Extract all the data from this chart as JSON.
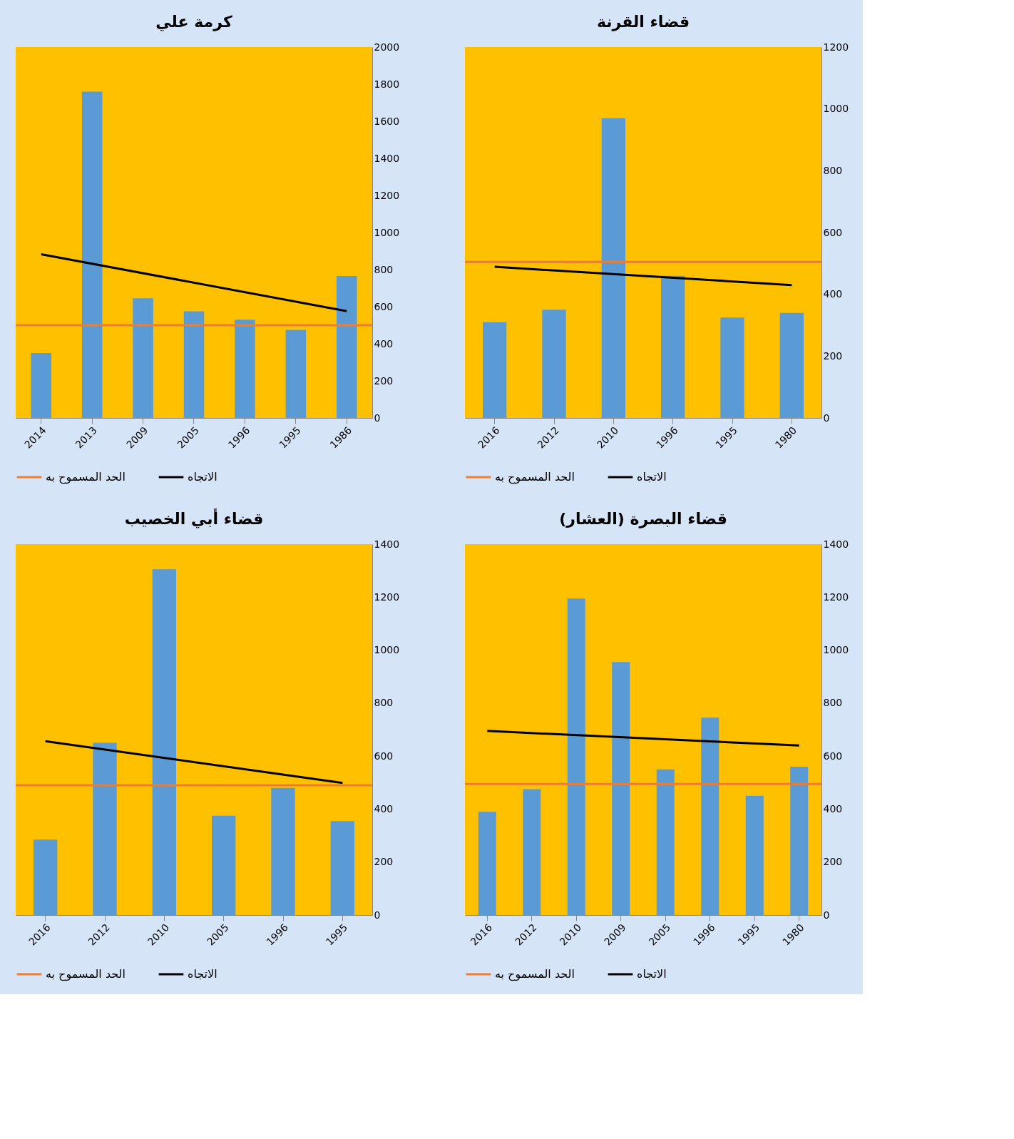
{
  "chart_data": [
    {
      "type": "bar",
      "title": "كرمة علي",
      "categories": [
        "2014",
        "2013",
        "2009",
        "2005",
        "1996",
        "1995",
        "1986"
      ],
      "series": [
        {
          "type": "bar",
          "color": "#5b9bd5",
          "values": [
            350,
            1760,
            645,
            575,
            530,
            475,
            765
          ]
        },
        {
          "type": "line",
          "name": "الاتجاه",
          "color": "#000000",
          "values": [
            883,
            null,
            null,
            null,
            null,
            null,
            576
          ]
        }
      ],
      "ref_lines": [
        {
          "axis": "y",
          "value": 500,
          "label": "الحد المسموح به",
          "color": "#ed7d31"
        }
      ],
      "ylim": [
        0,
        2000
      ],
      "yticks": [
        0,
        200,
        400,
        600,
        800,
        1000,
        1200,
        1400,
        1600,
        1800,
        2000
      ],
      "grid": false,
      "legend": "bottom"
    },
    {
      "type": "bar",
      "title": "قضاء القرنة",
      "categories": [
        "2016",
        "2012",
        "2010",
        "1996",
        "1995",
        "1980"
      ],
      "series": [
        {
          "type": "bar",
          "color": "#5b9bd5",
          "values": [
            310,
            350,
            970,
            460,
            325,
            340
          ]
        },
        {
          "type": "line",
          "name": "الاتجاه",
          "color": "#000000",
          "values": [
            489,
            null,
            null,
            null,
            null,
            430
          ]
        }
      ],
      "ref_lines": [
        {
          "axis": "y",
          "value": 505,
          "label": "الحد المسموح به",
          "color": "#ed7d31"
        }
      ],
      "ylim": [
        0,
        1200
      ],
      "yticks": [
        0,
        200,
        400,
        600,
        800,
        1000,
        1200
      ],
      "grid": false,
      "legend": "bottom"
    },
    {
      "type": "bar",
      "title": "قضاء أبي الخصيب",
      "categories": [
        "2016",
        "2012",
        "2010",
        "2005",
        "1996",
        "1995"
      ],
      "series": [
        {
          "type": "bar",
          "color": "#5b9bd5",
          "values": [
            285,
            650,
            1305,
            375,
            480,
            355
          ]
        },
        {
          "type": "line",
          "name": "الاتجاه",
          "color": "#000000",
          "values": [
            656,
            null,
            null,
            null,
            null,
            499
          ]
        }
      ],
      "ref_lines": [
        {
          "axis": "y",
          "value": 490,
          "label": "الحد المسموح به",
          "color": "#ed7d31"
        }
      ],
      "ylim": [
        0,
        1400
      ],
      "yticks": [
        0,
        200,
        400,
        600,
        800,
        1000,
        1200,
        1400
      ],
      "grid": false,
      "legend": "bottom"
    },
    {
      "type": "bar",
      "title": "قضاء البصرة (العشار)",
      "categories": [
        "2016",
        "2012",
        "2010",
        "2009",
        "2005",
        "1996",
        "1995",
        "1980"
      ],
      "series": [
        {
          "type": "bar",
          "color": "#5b9bd5",
          "values": [
            390,
            475,
            1195,
            955,
            550,
            745,
            450,
            560
          ]
        },
        {
          "type": "line",
          "name": "الاتجاه",
          "color": "#000000",
          "values": [
            695,
            null,
            null,
            null,
            null,
            null,
            null,
            640
          ]
        }
      ],
      "ref_lines": [
        {
          "axis": "y",
          "value": 495,
          "label": "الحد المسموح به",
          "color": "#ed7d31"
        }
      ],
      "ylim": [
        0,
        1400
      ],
      "yticks": [
        0,
        200,
        400,
        600,
        800,
        1000,
        1200,
        1400
      ],
      "grid": false,
      "legend": "bottom"
    }
  ]
}
